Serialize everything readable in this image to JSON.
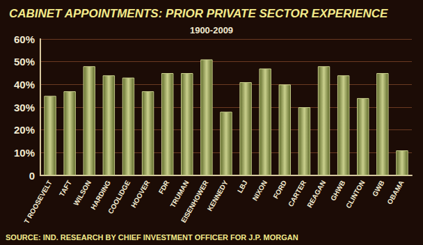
{
  "chart_data": {
    "type": "bar",
    "title": "CABINET APPOINTMENTS: PRIOR PRIVATE SECTOR EXPERIENCE",
    "subtitle": "1900-2009",
    "annotations": [
      "SOURCE: IND. RESEARCH BY CHIEF INVESTMENT OFFICER FOR J.P. MORGAN"
    ],
    "categories": [
      "T ROOSEVELT",
      "TAFT",
      "WILSON",
      "HARDING",
      "COOLIDGE",
      "HOOVER",
      "FDR",
      "TRUMAN",
      "EISENHOWER",
      "KENNEDY",
      "LBJ",
      "NIXON",
      "FORD",
      "CARTER",
      "REAGAN",
      "GHWB",
      "CLINTON",
      "GWB",
      "OBAMA"
    ],
    "values": [
      35,
      37,
      48,
      44,
      43,
      37,
      45,
      45,
      51,
      28,
      41,
      47,
      40,
      30,
      48,
      44,
      34,
      45,
      11
    ],
    "color": "#c9cf8c",
    "ylim": [
      0,
      60
    ],
    "yticks": [
      0,
      {
        "value": 10,
        "label": "10%"
      },
      {
        "value": 20,
        "label": "20%"
      },
      {
        "value": 30,
        "label": "30%"
      },
      {
        "value": 40,
        "label": "40%"
      },
      {
        "value": 50,
        "label": "50%"
      },
      {
        "value": 60,
        "label": "60%"
      }
    ],
    "grid": true
  }
}
